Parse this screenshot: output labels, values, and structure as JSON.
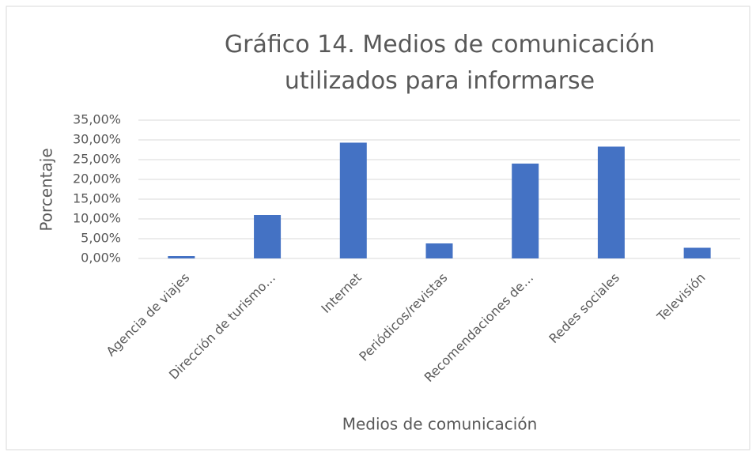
{
  "chart_data": {
    "type": "bar",
    "title": "Gráfico 14. Medios de comunicación utilizados para informarse",
    "x_label": "Medios de comunicación",
    "y_label": "Porcentaje",
    "categories": [
      "Agencia de viajes",
      "Dirección de turismo…",
      "Internet",
      "Periódicos/revistas",
      "Recomendaciones de…",
      "Redes sociales",
      "Televisión"
    ],
    "values": [
      0.6,
      11,
      29.3,
      3.8,
      24,
      28.3,
      2.7
    ],
    "color": "#4472c4",
    "ylim": [
      0,
      35
    ],
    "yticks": [
      {
        "value": 0,
        "label": "0,00%"
      },
      {
        "value": 5,
        "label": "5,00%"
      },
      {
        "value": 10,
        "label": "10,00%"
      },
      {
        "value": 15,
        "label": "15,00%"
      },
      {
        "value": 20,
        "label": "20,00%"
      },
      {
        "value": 25,
        "label": "25,00%"
      },
      {
        "value": 30,
        "label": "30,00%"
      },
      {
        "value": 35,
        "label": "35,00%"
      }
    ],
    "grid": true
  }
}
